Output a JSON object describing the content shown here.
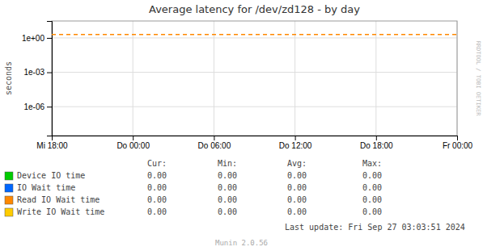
{
  "chart_data": {
    "type": "line",
    "title": "Average latency for /dev/zd128 - by day",
    "y_label": "seconds",
    "log": "y",
    "grid": true,
    "legend": "bottom",
    "xlim": [
      0,
      30
    ],
    "xticks": [
      {
        "value": 0,
        "label": "Mi 18:00"
      },
      {
        "value": 6,
        "label": "Do 00:00"
      },
      {
        "value": 12,
        "label": "Do 06:00"
      },
      {
        "value": 18,
        "label": "Do 12:00"
      },
      {
        "value": 24,
        "label": "Do 18:00"
      },
      {
        "value": 30,
        "label": "Fr 00:00"
      }
    ],
    "ylim": [
      3e-09,
      30
    ],
    "yticks": [
      {
        "value": 1e-06,
        "label": "1e-06"
      },
      {
        "value": 0.001,
        "label": "1e-03"
      },
      {
        "value": 1,
        "label": "1e+00"
      }
    ],
    "hline": {
      "value": 2.0,
      "color": "#ff8800"
    },
    "table_headers": [
      "Cur:",
      "Min:",
      "Avg:",
      "Max:"
    ],
    "series": [
      {
        "name": "Device IO time",
        "color": "#00cc00",
        "values": [],
        "table_values": [
          "0.00",
          "0.00",
          "0.00",
          "0.00"
        ]
      },
      {
        "name": "IO Wait time",
        "color": "#0066ff",
        "values": [],
        "table_values": [
          "0.00",
          "0.00",
          "0.00",
          "0.00"
        ]
      },
      {
        "name": "Read IO Wait time",
        "color": "#ff8800",
        "values": [],
        "table_values": [
          "0.00",
          "0.00",
          "0.00",
          "0.00"
        ]
      },
      {
        "name": "Write IO Wait time",
        "color": "#ffcc00",
        "values": [],
        "table_values": [
          "0.00",
          "0.00",
          "0.00",
          "0.00"
        ]
      }
    ],
    "annotations": [
      "RRDTOOL / TOBI OETIKER",
      "Last update: Fri Sep 27 03:03:51 2024",
      "Munin 2.0.56"
    ]
  }
}
